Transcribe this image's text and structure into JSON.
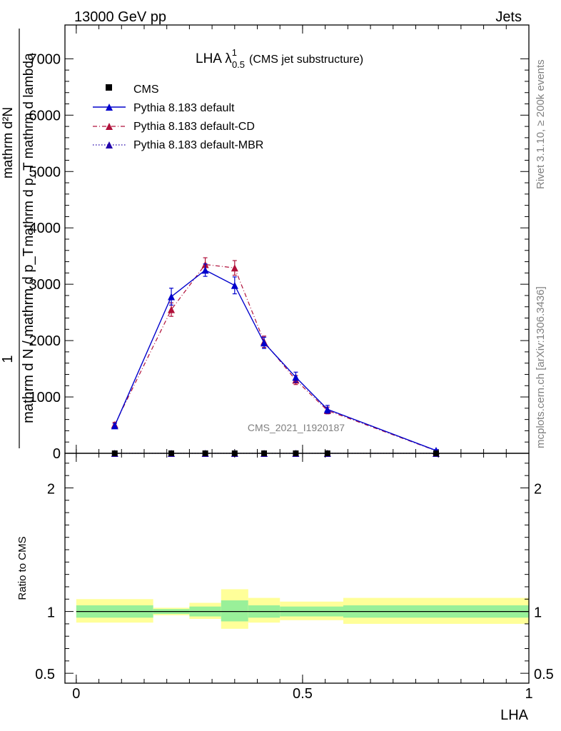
{
  "header": {
    "energy_label": "13000 GeV pp",
    "category_label": "Jets"
  },
  "side": {
    "rivet_label": "Rivet 3.1.10, ≥ 200k events",
    "mcplots_label": "mcplots.cern.ch [arXiv:1306.3436]"
  },
  "watermark": "CMS_2021_I1920187",
  "chart_data": [
    {
      "type": "line",
      "title_main": "LHA λ",
      "title_sup": "1",
      "title_sub": "0.5",
      "title_note": "(CMS jet substructure)",
      "ylabel_num": "1",
      "ylabel_den": "mathrm d N / mathrm d p_T",
      "ylabel_num2": "mathrm d²N",
      "ylabel_den2": "mathrm d p_T mathrm d lambda",
      "ylim": [
        0,
        7600
      ],
      "yticks": [
        0,
        1000,
        2000,
        3000,
        4000,
        5000,
        6000,
        7000
      ],
      "ytick_labels": [
        "0",
        "1000",
        "2000",
        "3000",
        "4000",
        "5000",
        "6000",
        "7000"
      ],
      "xlim": [
        -0.025,
        1.0
      ],
      "legend": [
        "CMS",
        "Pythia 8.183 default",
        "Pythia 8.183 default-CD",
        "Pythia 8.183 default-MBR"
      ],
      "series": [
        {
          "name": "CMS",
          "color": "#000000",
          "x": [
            0.085,
            0.21,
            0.285,
            0.35,
            0.415,
            0.485,
            0.555,
            0.795
          ],
          "y": [
            0,
            0,
            0,
            0,
            0,
            0,
            0,
            0
          ]
        },
        {
          "name": "Pythia 8.183 default",
          "color": "#0000cc",
          "x": [
            0.085,
            0.21,
            0.285,
            0.35,
            0.415,
            0.485,
            0.555,
            0.795
          ],
          "y": [
            490,
            2780,
            3250,
            2980,
            1960,
            1350,
            780,
            50
          ],
          "err": [
            40,
            150,
            110,
            150,
            100,
            90,
            70,
            15
          ]
        },
        {
          "name": "Pythia 8.183 default-CD",
          "color": "#b0103a",
          "x": [
            0.085,
            0.21,
            0.285,
            0.35,
            0.415,
            0.485,
            0.555,
            0.795
          ],
          "y": [
            510,
            2550,
            3350,
            3290,
            1980,
            1300,
            760,
            45
          ],
          "err": [
            40,
            120,
            120,
            130,
            100,
            80,
            60,
            15
          ]
        },
        {
          "name": "Pythia 8.183 default-MBR",
          "color": "#2200aa",
          "x": [
            0.085,
            0.21,
            0.285,
            0.35,
            0.415,
            0.485,
            0.555,
            0.795
          ],
          "y": [
            0,
            0,
            0,
            0,
            0,
            0,
            0,
            0
          ]
        }
      ]
    },
    {
      "type": "area",
      "ylabel": "Ratio to CMS",
      "ylim": [
        0.42,
        2.28
      ],
      "yticks": [
        0.5,
        1,
        2
      ],
      "ytick_labels": [
        "0.5",
        "1",
        "2"
      ],
      "xlim": [
        -0.025,
        1.0
      ],
      "xticks": [
        0,
        0.5,
        1
      ],
      "xtick_labels": [
        "0",
        "0.5",
        "1"
      ],
      "xlabel": "LHA",
      "reference": 1,
      "bins": [
        {
          "lo": 0.0,
          "hi": 0.17,
          "inner": [
            0.95,
            1.05
          ],
          "outer": [
            0.91,
            1.1
          ]
        },
        {
          "lo": 0.17,
          "hi": 0.25,
          "inner": [
            0.98,
            1.02
          ],
          "outer": [
            0.97,
            1.03
          ]
        },
        {
          "lo": 0.25,
          "hi": 0.32,
          "inner": [
            0.96,
            1.04
          ],
          "outer": [
            0.94,
            1.07
          ]
        },
        {
          "lo": 0.32,
          "hi": 0.38,
          "inner": [
            0.92,
            1.09
          ],
          "outer": [
            0.86,
            1.18
          ]
        },
        {
          "lo": 0.38,
          "hi": 0.45,
          "inner": [
            0.95,
            1.05
          ],
          "outer": [
            0.91,
            1.11
          ]
        },
        {
          "lo": 0.45,
          "hi": 0.59,
          "inner": [
            0.96,
            1.04
          ],
          "outer": [
            0.93,
            1.08
          ]
        },
        {
          "lo": 0.59,
          "hi": 1.0,
          "inner": [
            0.95,
            1.05
          ],
          "outer": [
            0.9,
            1.11
          ]
        }
      ]
    }
  ]
}
